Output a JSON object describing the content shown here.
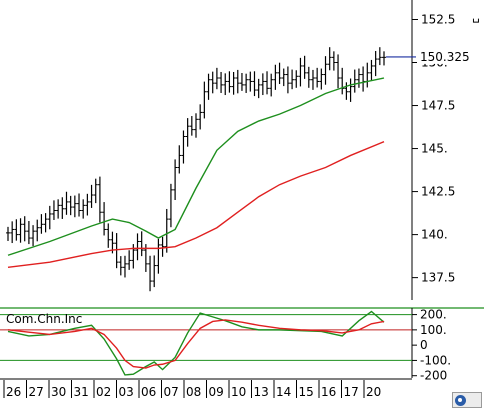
{
  "chart_data": [
    {
      "type": "line",
      "panel": "price",
      "y_ticks": [
        "152.5",
        "150.",
        "147.5",
        "145.",
        "142.5",
        "140.",
        "137.5"
      ],
      "ylim": [
        136.2,
        153.4
      ],
      "last_value_label": "150.325",
      "last_value": 150.325,
      "x_ticks": [
        "26",
        "27",
        "30",
        "31",
        "02",
        "03",
        "06",
        "07",
        "08",
        "09",
        "10",
        "13",
        "14",
        "15",
        "16",
        "17",
        "20"
      ],
      "series": [
        {
          "style": "bars",
          "color": "#000000",
          "x": [
            0,
            1,
            2,
            3,
            4,
            5,
            6,
            7,
            8,
            9,
            10,
            11,
            12,
            13,
            14,
            15,
            16,
            17,
            18,
            19,
            20,
            21,
            22,
            23,
            24,
            25,
            26,
            27,
            28,
            29,
            30,
            31,
            32,
            33,
            34,
            35,
            36,
            37,
            38,
            39,
            40,
            41,
            42,
            43,
            44,
            45,
            46,
            47,
            48,
            49,
            50,
            51,
            52,
            53,
            54,
            55,
            56,
            57,
            58,
            59,
            60,
            61,
            62,
            63,
            64,
            65,
            66,
            67,
            68,
            69,
            70,
            71,
            72,
            73,
            74,
            75,
            76,
            77,
            78,
            79,
            80,
            81,
            82,
            83,
            84,
            85,
            86,
            87,
            88,
            89,
            90
          ],
          "values": [
            140.1,
            140.3,
            140.0,
            140.6,
            140.2,
            139.8,
            140.2,
            140.4,
            140.6,
            140.9,
            141.2,
            141.4,
            141.7,
            141.5,
            141.9,
            141.6,
            141.8,
            141.4,
            141.7,
            141.9,
            142.3,
            142.9,
            141.3,
            140.3,
            139.7,
            139.5,
            138.4,
            138.1,
            138.3,
            138.5,
            139.1,
            139.6,
            139.1,
            138.3,
            137.3,
            138.2,
            139.4,
            139.3,
            140.9,
            142.6,
            143.9,
            144.6,
            145.7,
            146.3,
            146.1,
            146.7,
            147.1,
            148.3,
            149.0,
            148.8,
            149.1,
            148.7,
            148.9,
            148.6,
            149.1,
            148.8,
            148.7,
            149.0,
            148.9,
            148.4,
            148.7,
            148.9,
            148.5,
            149.0,
            149.4,
            149.1,
            149.3,
            148.8,
            149.0,
            149.2,
            149.8,
            149.4,
            149.0,
            149.1,
            148.9,
            149.3,
            149.9,
            150.3,
            150.0,
            149.1,
            148.5,
            148.3,
            148.6,
            149.0,
            149.3,
            148.9,
            149.4,
            149.8,
            150.2,
            150.3,
            150.3
          ]
        },
        {
          "style": "line",
          "color": "#1e8f1e",
          "x": [
            0,
            10,
            20,
            25,
            29,
            33,
            36,
            40,
            45,
            50,
            55,
            60,
            65,
            70,
            76,
            82,
            90
          ],
          "values": [
            138.8,
            139.6,
            140.5,
            140.9,
            140.7,
            140.2,
            139.8,
            140.3,
            142.7,
            144.9,
            146.0,
            146.6,
            147.0,
            147.5,
            148.2,
            148.7,
            149.1
          ]
        },
        {
          "style": "line",
          "color": "#e02020",
          "x": [
            0,
            10,
            20,
            25,
            30,
            36,
            40,
            45,
            50,
            55,
            60,
            65,
            70,
            76,
            82,
            90
          ],
          "values": [
            138.1,
            138.4,
            138.9,
            139.1,
            139.2,
            139.2,
            139.3,
            139.8,
            140.4,
            141.3,
            142.2,
            142.9,
            143.4,
            143.9,
            144.6,
            145.4
          ]
        }
      ]
    },
    {
      "type": "line",
      "panel": "oscillator",
      "label": "Com.Chn.Inc",
      "y_ticks": [
        "200.",
        "100.",
        "0",
        "-100.",
        "-200"
      ],
      "ylim": [
        -215,
        230
      ],
      "reference_lines": [
        {
          "value": 200,
          "color": "#1e8f1e"
        },
        {
          "value": 100,
          "color": "#c02020"
        },
        {
          "value": -100,
          "color": "#1e8f1e"
        }
      ],
      "series": [
        {
          "style": "line",
          "color": "#1e8f1e",
          "x": [
            0,
            5,
            10,
            16,
            20,
            23,
            26,
            28,
            30,
            33,
            35,
            37,
            40,
            43,
            46,
            49,
            52,
            56,
            60,
            65,
            70,
            75,
            80,
            84,
            87,
            90
          ],
          "values": [
            90,
            60,
            70,
            110,
            130,
            40,
            -90,
            -195,
            -190,
            -140,
            -110,
            -160,
            -80,
            80,
            210,
            185,
            160,
            120,
            100,
            100,
            95,
            90,
            60,
            160,
            220,
            150
          ]
        },
        {
          "style": "line",
          "color": "#e02020",
          "x": [
            0,
            5,
            10,
            16,
            20,
            23,
            26,
            28,
            30,
            33,
            35,
            37,
            40,
            43,
            46,
            49,
            52,
            56,
            60,
            65,
            70,
            75,
            80,
            84,
            87,
            90
          ],
          "values": [
            100,
            85,
            70,
            90,
            110,
            70,
            -20,
            -100,
            -140,
            -150,
            -130,
            -125,
            -100,
            10,
            110,
            155,
            165,
            150,
            130,
            110,
            100,
            95,
            80,
            100,
            140,
            155
          ]
        }
      ]
    }
  ]
}
